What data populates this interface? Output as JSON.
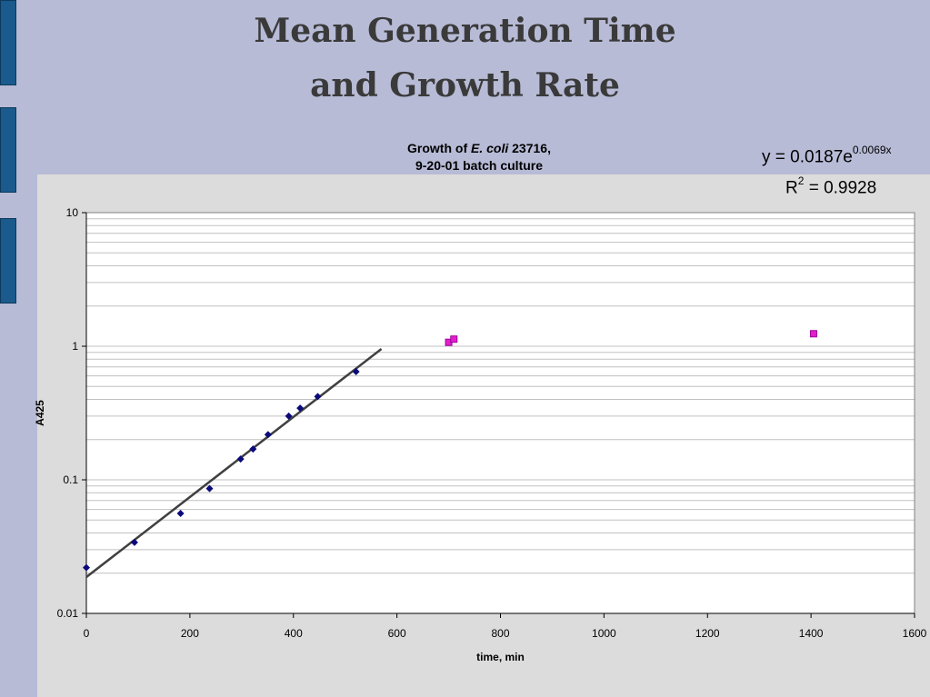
{
  "slide": {
    "title_line1": "Mean Generation Time",
    "title_line2": "and Growth Rate"
  },
  "chart_title": {
    "line1_pre": "Growth of ",
    "line1_italic": "E. coli",
    "line1_post": " 23716,",
    "line2": "9-20-01 batch culture"
  },
  "equation": {
    "y_prefix": "y = 0.0187e",
    "exponent": "0.0069x",
    "r_label": "R",
    "r_sup": "2",
    "r_value": " = 0.9928"
  },
  "colors": {
    "slide_bg": "#b7bbd6",
    "chart_bg": "#dcdcdc",
    "plot_bg": "#ffffff",
    "grid": "#c0c0c0",
    "exp_series": "#0a0a7a",
    "stationary_series": "#e020c8",
    "trendline": "#404040",
    "side_tab": "#1a5a8c"
  },
  "chart_data": {
    "type": "scatter",
    "xlabel": "time, min",
    "ylabel": "A425",
    "xlim": [
      0,
      1600
    ],
    "ylim": [
      0.01,
      10
    ],
    "y_scale": "log",
    "x_ticks": [
      0,
      200,
      400,
      600,
      800,
      1000,
      1200,
      1400,
      1600
    ],
    "y_ticks": [
      "0.01",
      "0.1",
      "1",
      "10"
    ],
    "grid": true,
    "series": [
      {
        "marker": "diamond",
        "points": [
          [
            0,
            0.022
          ],
          [
            93,
            0.034
          ],
          [
            182,
            0.056
          ],
          [
            238,
            0.086
          ],
          [
            298,
            0.143
          ],
          [
            322,
            0.17
          ],
          [
            351,
            0.218
          ],
          [
            391,
            0.3
          ],
          [
            413,
            0.344
          ],
          [
            447,
            0.42
          ],
          [
            521,
            0.645
          ]
        ]
      },
      {
        "marker": "square",
        "points": [
          [
            700,
            1.07
          ],
          [
            710,
            1.13
          ],
          [
            1405,
            1.24
          ]
        ]
      }
    ],
    "trendline": {
      "type": "exponential",
      "a": 0.0187,
      "b": 0.0069,
      "x_range": [
        0,
        570
      ]
    }
  }
}
